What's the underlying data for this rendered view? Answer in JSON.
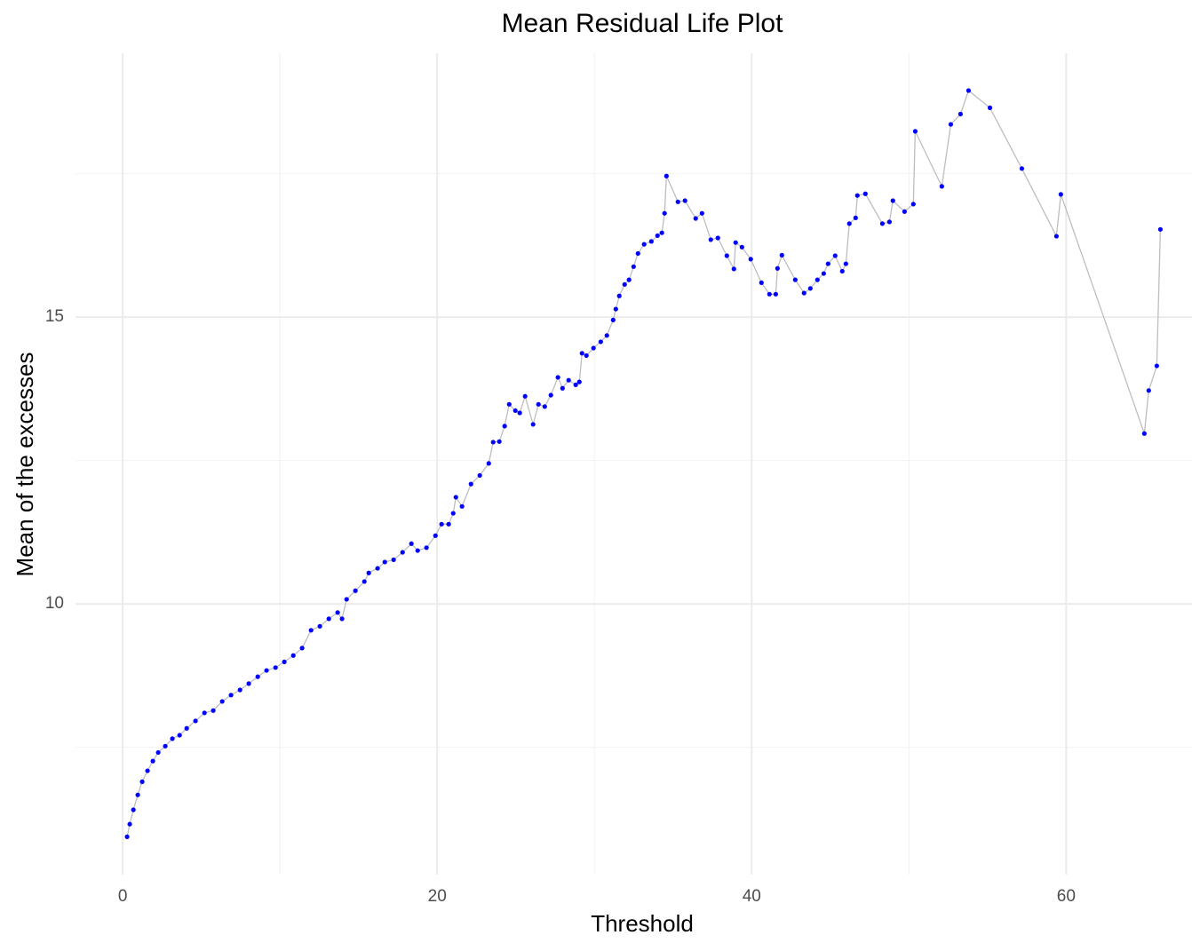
{
  "chart_data": {
    "type": "line",
    "title": "Mean Residual Life Plot",
    "x_label": "Threshold",
    "y_label": "Mean of the excesses",
    "x": [
      0.28,
      0.45,
      0.68,
      0.96,
      1.24,
      1.58,
      1.92,
      2.26,
      2.71,
      3.16,
      3.62,
      4.07,
      4.63,
      5.2,
      5.76,
      6.33,
      6.89,
      7.46,
      8.02,
      8.59,
      9.15,
      9.72,
      10.28,
      10.85,
      11.41,
      11.98,
      12.54,
      13.11,
      13.67,
      13.95,
      14.24,
      14.8,
      15.37,
      15.65,
      16.21,
      16.67,
      17.23,
      17.8,
      18.36,
      18.76,
      19.32,
      19.89,
      20.28,
      20.73,
      21.02,
      21.19,
      21.58,
      22.15,
      22.71,
      23.28,
      23.56,
      23.95,
      24.29,
      24.58,
      24.97,
      25.25,
      25.59,
      26.1,
      26.44,
      26.84,
      27.23,
      27.68,
      27.97,
      28.36,
      28.81,
      29.04,
      29.21,
      29.49,
      29.94,
      30.4,
      30.79,
      31.19,
      31.36,
      31.58,
      31.92,
      32.2,
      32.49,
      32.77,
      33.16,
      33.62,
      34.01,
      34.29,
      34.46,
      34.58,
      35.31,
      35.76,
      36.44,
      36.84,
      37.4,
      37.85,
      38.42,
      38.87,
      38.98,
      39.38,
      39.94,
      40.62,
      41.13,
      41.53,
      41.64,
      41.92,
      42.77,
      43.33,
      43.73,
      44.18,
      44.58,
      44.86,
      45.31,
      45.76,
      45.99,
      46.21,
      46.61,
      46.72,
      47.23,
      48.31,
      48.76,
      48.98,
      49.72,
      50.28,
      50.4,
      52.09,
      52.66,
      53.28,
      53.79,
      55.15,
      57.18,
      59.38,
      59.66,
      64.97,
      65.25,
      65.76,
      65.99
    ],
    "values": [
      5.94,
      6.16,
      6.41,
      6.67,
      6.9,
      7.09,
      7.26,
      7.41,
      7.52,
      7.65,
      7.71,
      7.83,
      7.96,
      8.1,
      8.14,
      8.3,
      8.41,
      8.5,
      8.61,
      8.73,
      8.84,
      8.89,
      8.99,
      9.1,
      9.23,
      9.54,
      9.61,
      9.74,
      9.85,
      9.74,
      10.08,
      10.23,
      10.39,
      10.54,
      10.62,
      10.73,
      10.77,
      10.9,
      11.05,
      10.93,
      10.98,
      11.19,
      11.39,
      11.39,
      11.58,
      11.86,
      11.7,
      12.09,
      12.24,
      12.45,
      12.82,
      12.83,
      13.1,
      13.48,
      13.37,
      13.33,
      13.62,
      13.13,
      13.48,
      13.44,
      13.64,
      13.95,
      13.76,
      13.9,
      13.82,
      13.87,
      14.37,
      14.33,
      14.46,
      14.57,
      14.68,
      14.95,
      15.14,
      15.37,
      15.57,
      15.65,
      15.88,
      16.11,
      16.27,
      16.32,
      16.42,
      16.47,
      16.81,
      17.46,
      17.01,
      17.03,
      16.72,
      16.81,
      16.35,
      16.38,
      16.07,
      15.84,
      16.3,
      16.22,
      16.01,
      15.6,
      15.4,
      15.4,
      15.85,
      16.08,
      15.65,
      15.42,
      15.5,
      15.65,
      15.76,
      15.93,
      16.07,
      15.8,
      15.93,
      16.63,
      16.73,
      17.12,
      17.15,
      16.63,
      16.66,
      17.03,
      16.84,
      16.97,
      18.24,
      17.28,
      18.36,
      18.54,
      18.95,
      18.65,
      17.59,
      16.41,
      17.14,
      12.97,
      13.72,
      14.15,
      16.53
    ],
    "color": "#0000ff",
    "line_color": "#bebebe",
    "xlim": [
      -3,
      68
    ],
    "ylim": [
      5.28,
      19.6
    ],
    "xticks": [
      0,
      20,
      40,
      60
    ],
    "yticks": [
      10,
      15
    ],
    "x_minor_ticks": [
      10,
      30,
      50
    ],
    "y_minor_ticks": [
      7.5,
      12.5,
      17.5
    ],
    "grid": true
  }
}
